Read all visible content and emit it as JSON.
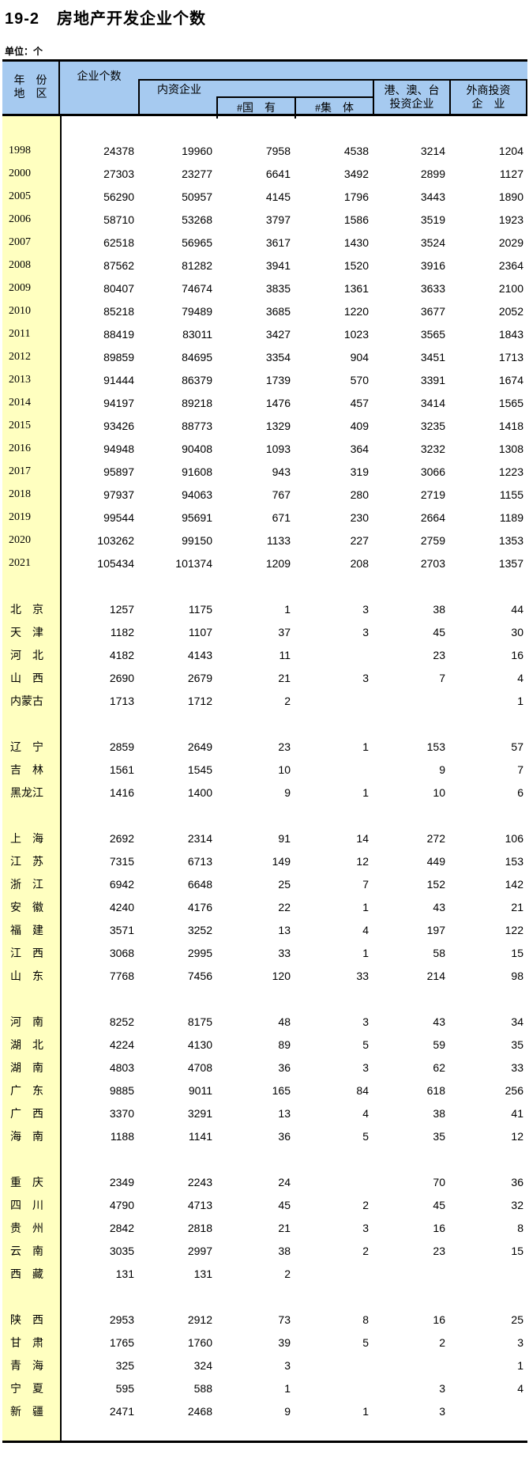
{
  "title": {
    "number": "19-2",
    "text": "房地产开发企业个数"
  },
  "unit_label": "单位：个",
  "table": {
    "colors": {
      "header_bg": "#A6CAF0",
      "label_bg": "#FFFFC0",
      "border": "#000000"
    },
    "header": {
      "row_axis_line1": "年　份",
      "row_axis_line2": "地　区",
      "col_total": "企业个数",
      "col_domestic": "内资企业",
      "col_state": "#国　有",
      "col_collective": "#集　体",
      "col_hmt_line1": "港、澳、台",
      "col_hmt_line2": "投资企业",
      "col_foreign_line1": "外商投资",
      "col_foreign_line2": "企　业"
    },
    "column_keys": [
      "total",
      "domestic",
      "state",
      "collective",
      "hmt",
      "foreign"
    ],
    "rows": [
      {
        "kind": "blank"
      },
      {
        "kind": "year",
        "label": "1998",
        "values": [
          "24378",
          "19960",
          "7958",
          "4538",
          "3214",
          "1204"
        ]
      },
      {
        "kind": "year",
        "label": "2000",
        "values": [
          "27303",
          "23277",
          "6641",
          "3492",
          "2899",
          "1127"
        ]
      },
      {
        "kind": "year",
        "label": "2005",
        "values": [
          "56290",
          "50957",
          "4145",
          "1796",
          "3443",
          "1890"
        ]
      },
      {
        "kind": "year",
        "label": "2006",
        "values": [
          "58710",
          "53268",
          "3797",
          "1586",
          "3519",
          "1923"
        ]
      },
      {
        "kind": "year",
        "label": "2007",
        "values": [
          "62518",
          "56965",
          "3617",
          "1430",
          "3524",
          "2029"
        ]
      },
      {
        "kind": "year",
        "label": "2008",
        "values": [
          "87562",
          "81282",
          "3941",
          "1520",
          "3916",
          "2364"
        ]
      },
      {
        "kind": "year",
        "label": "2009",
        "values": [
          "80407",
          "74674",
          "3835",
          "1361",
          "3633",
          "2100"
        ]
      },
      {
        "kind": "year",
        "label": "2010",
        "values": [
          "85218",
          "79489",
          "3685",
          "1220",
          "3677",
          "2052"
        ]
      },
      {
        "kind": "year",
        "label": "2011",
        "values": [
          "88419",
          "83011",
          "3427",
          "1023",
          "3565",
          "1843"
        ]
      },
      {
        "kind": "year",
        "label": "2012",
        "values": [
          "89859",
          "84695",
          "3354",
          "904",
          "3451",
          "1713"
        ]
      },
      {
        "kind": "year",
        "label": "2013",
        "values": [
          "91444",
          "86379",
          "1739",
          "570",
          "3391",
          "1674"
        ]
      },
      {
        "kind": "year",
        "label": "2014",
        "values": [
          "94197",
          "89218",
          "1476",
          "457",
          "3414",
          "1565"
        ]
      },
      {
        "kind": "year",
        "label": "2015",
        "values": [
          "93426",
          "88773",
          "1329",
          "409",
          "3235",
          "1418"
        ]
      },
      {
        "kind": "year",
        "label": "2016",
        "values": [
          "94948",
          "90408",
          "1093",
          "364",
          "3232",
          "1308"
        ]
      },
      {
        "kind": "year",
        "label": "2017",
        "values": [
          "95897",
          "91608",
          "943",
          "319",
          "3066",
          "1223"
        ]
      },
      {
        "kind": "year",
        "label": "2018",
        "values": [
          "97937",
          "94063",
          "767",
          "280",
          "2719",
          "1155"
        ]
      },
      {
        "kind": "year",
        "label": "2019",
        "values": [
          "99544",
          "95691",
          "671",
          "230",
          "2664",
          "1189"
        ]
      },
      {
        "kind": "year",
        "label": "2020",
        "values": [
          "103262",
          "99150",
          "1133",
          "227",
          "2759",
          "1353"
        ]
      },
      {
        "kind": "year",
        "label": "2021",
        "values": [
          "105434",
          "101374",
          "1209",
          "208",
          "2703",
          "1357"
        ]
      },
      {
        "kind": "blank"
      },
      {
        "kind": "region",
        "label": "北　京",
        "values": [
          "1257",
          "1175",
          "1",
          "3",
          "38",
          "44"
        ]
      },
      {
        "kind": "region",
        "label": "天　津",
        "values": [
          "1182",
          "1107",
          "37",
          "3",
          "45",
          "30"
        ]
      },
      {
        "kind": "region",
        "label": "河　北",
        "values": [
          "4182",
          "4143",
          "11",
          "",
          "23",
          "16"
        ]
      },
      {
        "kind": "region",
        "label": "山　西",
        "values": [
          "2690",
          "2679",
          "21",
          "3",
          "7",
          "4"
        ]
      },
      {
        "kind": "region",
        "label": "内蒙古",
        "values": [
          "1713",
          "1712",
          "2",
          "",
          "",
          "1"
        ]
      },
      {
        "kind": "blank"
      },
      {
        "kind": "region",
        "label": "辽　宁",
        "values": [
          "2859",
          "2649",
          "23",
          "1",
          "153",
          "57"
        ]
      },
      {
        "kind": "region",
        "label": "吉　林",
        "values": [
          "1561",
          "1545",
          "10",
          "",
          "9",
          "7"
        ]
      },
      {
        "kind": "region",
        "label": "黑龙江",
        "values": [
          "1416",
          "1400",
          "9",
          "1",
          "10",
          "6"
        ]
      },
      {
        "kind": "blank"
      },
      {
        "kind": "region",
        "label": "上　海",
        "values": [
          "2692",
          "2314",
          "91",
          "14",
          "272",
          "106"
        ]
      },
      {
        "kind": "region",
        "label": "江　苏",
        "values": [
          "7315",
          "6713",
          "149",
          "12",
          "449",
          "153"
        ]
      },
      {
        "kind": "region",
        "label": "浙　江",
        "values": [
          "6942",
          "6648",
          "25",
          "7",
          "152",
          "142"
        ]
      },
      {
        "kind": "region",
        "label": "安　徽",
        "values": [
          "4240",
          "4176",
          "22",
          "1",
          "43",
          "21"
        ]
      },
      {
        "kind": "region",
        "label": "福　建",
        "values": [
          "3571",
          "3252",
          "13",
          "4",
          "197",
          "122"
        ]
      },
      {
        "kind": "region",
        "label": "江　西",
        "values": [
          "3068",
          "2995",
          "33",
          "1",
          "58",
          "15"
        ]
      },
      {
        "kind": "region",
        "label": "山　东",
        "values": [
          "7768",
          "7456",
          "120",
          "33",
          "214",
          "98"
        ]
      },
      {
        "kind": "blank"
      },
      {
        "kind": "region",
        "label": "河　南",
        "values": [
          "8252",
          "8175",
          "48",
          "3",
          "43",
          "34"
        ]
      },
      {
        "kind": "region",
        "label": "湖　北",
        "values": [
          "4224",
          "4130",
          "89",
          "5",
          "59",
          "35"
        ]
      },
      {
        "kind": "region",
        "label": "湖　南",
        "values": [
          "4803",
          "4708",
          "36",
          "3",
          "62",
          "33"
        ]
      },
      {
        "kind": "region",
        "label": "广　东",
        "values": [
          "9885",
          "9011",
          "165",
          "84",
          "618",
          "256"
        ]
      },
      {
        "kind": "region",
        "label": "广　西",
        "values": [
          "3370",
          "3291",
          "13",
          "4",
          "38",
          "41"
        ]
      },
      {
        "kind": "region",
        "label": "海　南",
        "values": [
          "1188",
          "1141",
          "36",
          "5",
          "35",
          "12"
        ]
      },
      {
        "kind": "blank"
      },
      {
        "kind": "region",
        "label": "重　庆",
        "values": [
          "2349",
          "2243",
          "24",
          "",
          "70",
          "36"
        ]
      },
      {
        "kind": "region",
        "label": "四　川",
        "values": [
          "4790",
          "4713",
          "45",
          "2",
          "45",
          "32"
        ]
      },
      {
        "kind": "region",
        "label": "贵　州",
        "values": [
          "2842",
          "2818",
          "21",
          "3",
          "16",
          "8"
        ]
      },
      {
        "kind": "region",
        "label": "云　南",
        "values": [
          "3035",
          "2997",
          "38",
          "2",
          "23",
          "15"
        ]
      },
      {
        "kind": "region",
        "label": "西　藏",
        "values": [
          "131",
          "131",
          "2",
          "",
          "",
          ""
        ]
      },
      {
        "kind": "blank"
      },
      {
        "kind": "region",
        "label": "陕　西",
        "values": [
          "2953",
          "2912",
          "73",
          "8",
          "16",
          "25"
        ]
      },
      {
        "kind": "region",
        "label": "甘　肃",
        "values": [
          "1765",
          "1760",
          "39",
          "5",
          "2",
          "3"
        ]
      },
      {
        "kind": "region",
        "label": "青　海",
        "values": [
          "325",
          "324",
          "3",
          "",
          "",
          "1"
        ]
      },
      {
        "kind": "region",
        "label": "宁　夏",
        "values": [
          "595",
          "588",
          "1",
          "",
          "3",
          "4"
        ]
      },
      {
        "kind": "region",
        "label": "新　疆",
        "values": [
          "2471",
          "2468",
          "9",
          "1",
          "3",
          ""
        ]
      }
    ]
  }
}
